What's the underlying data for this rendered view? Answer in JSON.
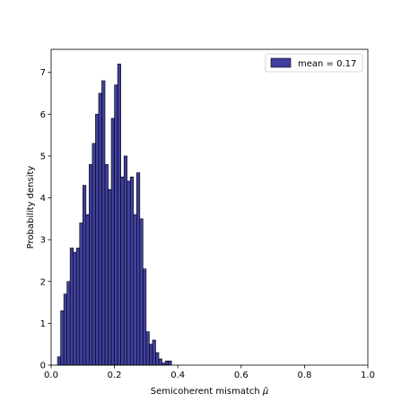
{
  "chart_data": {
    "type": "bar",
    "subtype": "histogram",
    "xlabel": "Semicoherent mismatch ",
    "xlabel_symbol": "μ̂",
    "ylabel": "Probability density",
    "xlim": [
      0.0,
      1.0
    ],
    "ylim": [
      0,
      7.55
    ],
    "xticks": [
      "0.0",
      "0.2",
      "0.4",
      "0.6",
      "0.8",
      "1.0"
    ],
    "yticks": [
      "0",
      "1",
      "2",
      "3",
      "4",
      "5",
      "6",
      "7"
    ],
    "grid": false,
    "legend": {
      "position": "top-right",
      "entries": [
        "mean = 0.17"
      ]
    },
    "bin_width": 0.01,
    "series": [
      {
        "name": "mean = 0.17",
        "color": "#1f1f8f",
        "edge_color": "#000000",
        "bin_starts": [
          0.02,
          0.03,
          0.04,
          0.05,
          0.06,
          0.07,
          0.08,
          0.09,
          0.1,
          0.11,
          0.12,
          0.13,
          0.14,
          0.15,
          0.16,
          0.17,
          0.18,
          0.19,
          0.2,
          0.21,
          0.22,
          0.23,
          0.24,
          0.25,
          0.26,
          0.27,
          0.28,
          0.29,
          0.3,
          0.31,
          0.32,
          0.33,
          0.34,
          0.35,
          0.36,
          0.37
        ],
        "values": [
          0.2,
          1.3,
          1.7,
          2.0,
          2.8,
          2.7,
          2.8,
          3.4,
          4.3,
          3.6,
          4.8,
          5.3,
          6.0,
          6.5,
          6.8,
          4.8,
          4.2,
          5.9,
          6.7,
          7.2,
          4.5,
          5.0,
          4.4,
          4.5,
          3.6,
          4.6,
          3.5,
          2.3,
          0.8,
          0.5,
          0.6,
          0.3,
          0.15,
          0.05,
          0.1,
          0.1
        ]
      }
    ]
  }
}
